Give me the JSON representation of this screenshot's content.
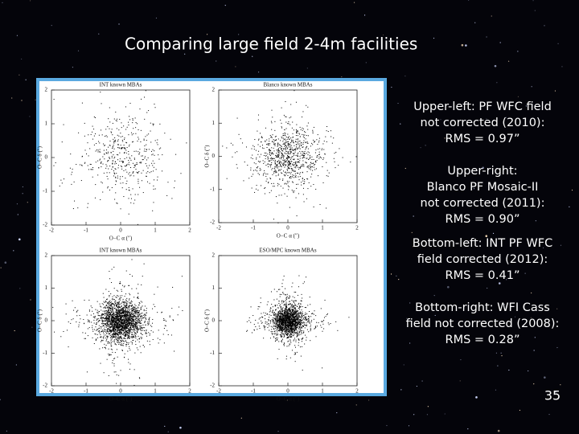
{
  "title": "Comparing large field 2-4m facilities",
  "panels": [
    {
      "title": "INT known MBAs",
      "xlabel": "O−C α (″)",
      "ylabel": "O−C δ (″)",
      "xticks": [
        -2,
        -1,
        0,
        1,
        2
      ],
      "yticks": [
        -2,
        -1,
        0,
        1,
        2
      ]
    },
    {
      "title": "Blanco known MBAs",
      "xlabel": "O−C α (″)",
      "ylabel": "O−C δ (″)",
      "xticks": [
        -2,
        -1,
        0,
        1,
        2
      ],
      "yticks": [
        -2,
        -1,
        0,
        1,
        2
      ]
    },
    {
      "title": "INT known MBAs",
      "xlabel": "O−C α (″)",
      "ylabel": "O−C δ (″)",
      "xticks": [
        -2,
        -1,
        0,
        1,
        2
      ],
      "yticks": [
        -2,
        -1,
        0,
        1,
        2
      ]
    },
    {
      "title": "ESO/MPC known MBAs",
      "xlabel": "O−C α (″)",
      "ylabel": "O−C δ (″)",
      "xticks": [
        -2,
        -1,
        0,
        1,
        2
      ],
      "yticks": [
        -2,
        -1,
        0,
        1,
        2
      ]
    }
  ],
  "notes": [
    {
      "lines": [
        "Upper-left: PF WFC field",
        "not corrected (2010):",
        "RMS = 0.97”"
      ]
    },
    {
      "lines": [
        "Upper-right:",
        "Blanco PF Mosaic-II",
        "not corrected (2011):",
        "RMS = 0.90”"
      ]
    },
    {
      "lines": [
        "Bottom-left: INT PF WFC",
        "field corrected (2012):",
        "RMS = 0.41”"
      ]
    },
    {
      "lines": [
        "Bottom-right: WFI Cass",
        "field not corrected (2008):",
        "RMS = 0.28”"
      ]
    }
  ],
  "page_number": "35"
}
